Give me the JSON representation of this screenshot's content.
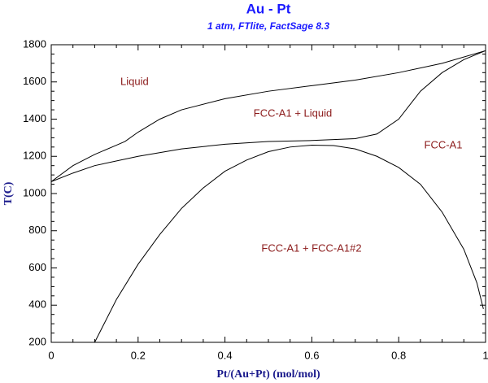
{
  "chart_data": {
    "type": "line",
    "title": "Au - Pt",
    "subtitle": "1 atm, FTlite, FactSage 8.3",
    "x_label": "Pt/(Au+Pt) (mol/mol)",
    "y_label": "T(C)",
    "xlim": [
      0,
      1
    ],
    "ylim": [
      200,
      1800
    ],
    "xticks": [
      0,
      0.2,
      0.4,
      0.6,
      0.8,
      1
    ],
    "yticks": [
      200,
      400,
      600,
      800,
      1000,
      1200,
      1400,
      1600,
      1800
    ],
    "annotations": [
      "Liquid",
      "FCC-A1 + Liquid",
      "FCC-A1",
      "FCC-A1 + FCC-A1#2"
    ],
    "series": [
      {
        "color": "#000000",
        "x": [
          0,
          0.05,
          0.1,
          0.15,
          0.17,
          0.2,
          0.25,
          0.3,
          0.4,
          0.5,
          0.6,
          0.7,
          0.8,
          0.9,
          1
        ],
        "values": [
          1064,
          1150,
          1210,
          1260,
          1280,
          1330,
          1400,
          1450,
          1510,
          1550,
          1580,
          1610,
          1650,
          1700,
          1768
        ]
      },
      {
        "color": "#000000",
        "x": [
          0,
          0.05,
          0.1,
          0.2,
          0.3,
          0.4,
          0.5,
          0.6,
          0.7,
          0.75,
          0.8,
          0.85,
          0.9,
          0.95,
          1
        ],
        "values": [
          1064,
          1110,
          1150,
          1200,
          1240,
          1265,
          1280,
          1285,
          1295,
          1320,
          1400,
          1550,
          1650,
          1720,
          1768
        ]
      },
      {
        "color": "#000000",
        "x": [
          0.1,
          0.15,
          0.2,
          0.25,
          0.3,
          0.35,
          0.4,
          0.45,
          0.5,
          0.55,
          0.6,
          0.65,
          0.7,
          0.75,
          0.8,
          0.85,
          0.9,
          0.95,
          0.98,
          0.995
        ],
        "values": [
          200,
          430,
          620,
          780,
          920,
          1030,
          1120,
          1180,
          1225,
          1250,
          1260,
          1258,
          1240,
          1200,
          1140,
          1050,
          900,
          700,
          520,
          380
        ]
      }
    ]
  }
}
